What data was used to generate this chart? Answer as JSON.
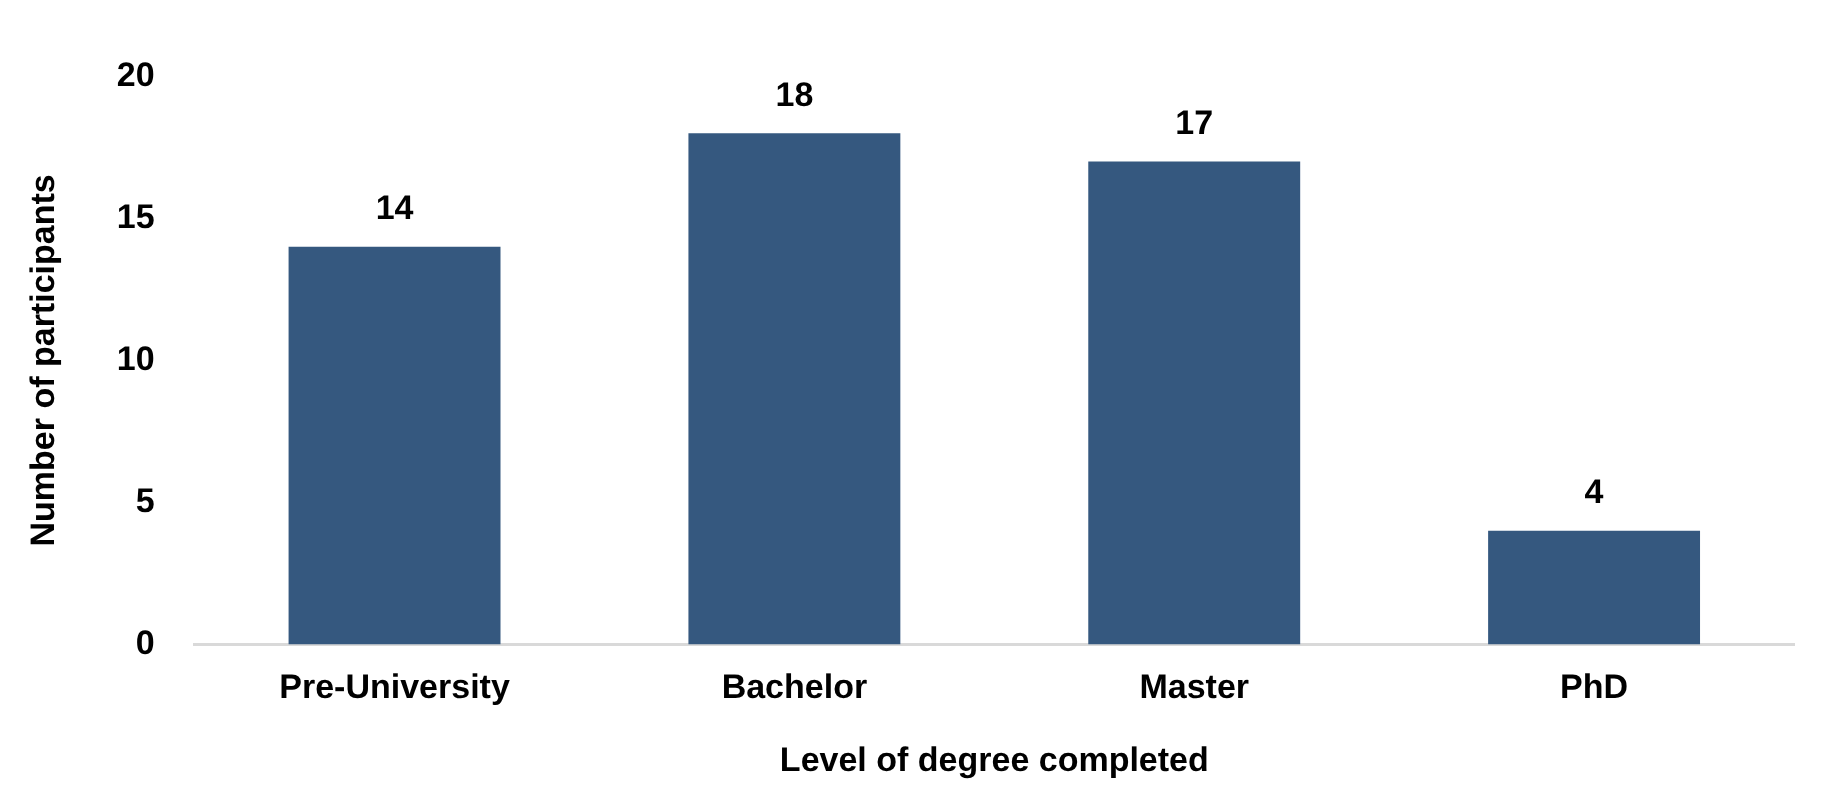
{
  "chart_data": {
    "type": "bar",
    "xlabel": "Level of degree completed",
    "ylabel": "Number of participants",
    "categories": [
      "Pre-University",
      "Bachelor",
      "Master",
      "PhD"
    ],
    "values": [
      14,
      18,
      17,
      4
    ],
    "color": "#35587f",
    "ylim": [
      0,
      20
    ],
    "yticks": [
      0,
      5,
      10,
      15,
      20
    ],
    "grid": false,
    "data_labels": true,
    "legend": false
  }
}
